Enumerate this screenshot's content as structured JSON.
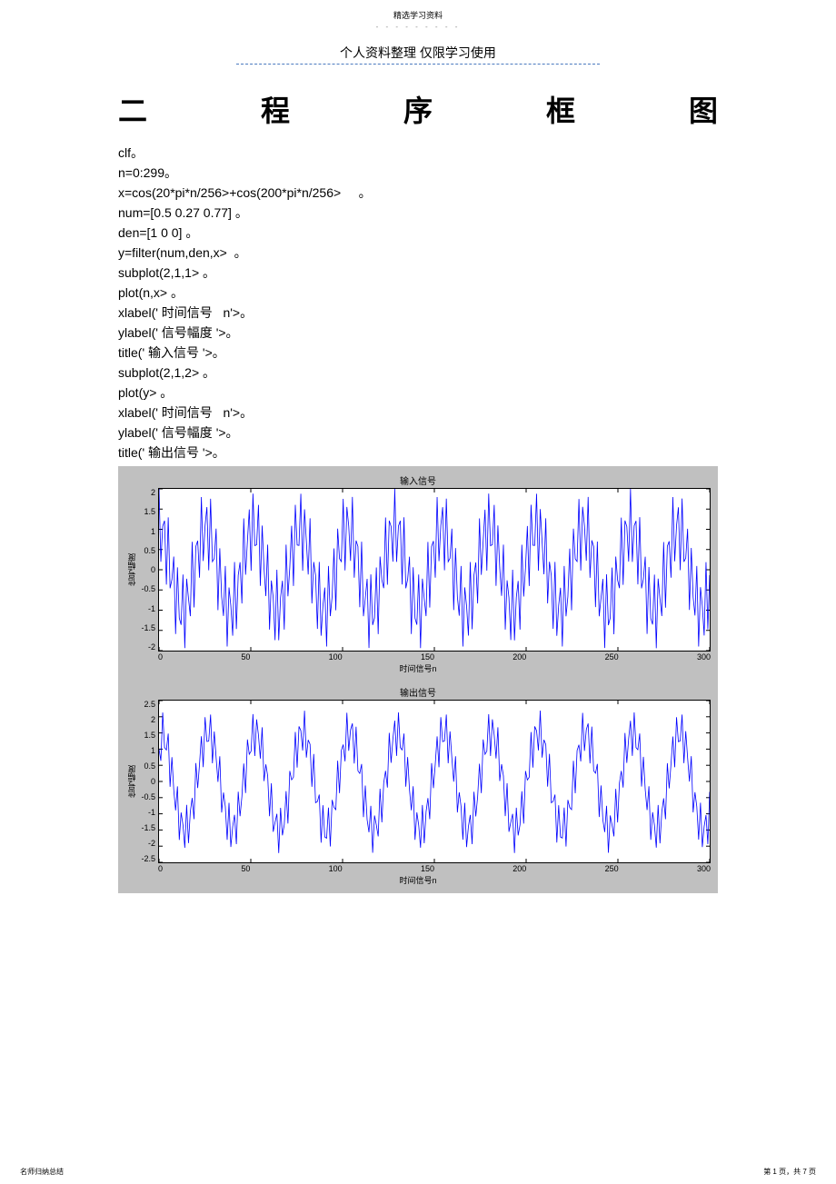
{
  "header": {
    "top": "精选学习资料",
    "dots": "- - - - - - - - -",
    "sub": "个人资料整理    仅限学习使用"
  },
  "title_chars": [
    "二",
    "程",
    "序",
    "框",
    "图"
  ],
  "code_lines": [
    "clf。",
    "n=0:299。",
    "x=cos(20*pi*n/256>+cos(200*pi*n/256>     。",
    "num=[0.5 0.27 0.77] 。",
    "den=[1 0 0] 。",
    "y=filter(num,den,x>  。",
    "subplot(2,1,1> 。",
    "plot(n,x> 。",
    "xlabel(' 时间信号   n'>。",
    "ylabel(' 信号幅度 '>。",
    "title(' 输入信号 '>。",
    "subplot(2,1,2> 。",
    "plot(y> 。",
    "xlabel(' 时间信号   n'>。",
    "ylabel(' 信号幅度 '>。",
    "title(' 输出信号 '>。"
  ],
  "chart1": {
    "title": "输入信号",
    "xlabel": "时间信号n",
    "ylabel": "信号幅度",
    "line_color": "#0000ff",
    "bg": "#ffffff",
    "box_color": "#000000",
    "xlim": [
      0,
      300
    ],
    "ylim": [
      -2,
      2
    ],
    "xticks": [
      "0",
      "50",
      "100",
      "150",
      "200",
      "250",
      "300"
    ],
    "yticks": [
      "2",
      "1.5",
      "1",
      "0.5",
      "0",
      "-0.5",
      "-1",
      "-1.5",
      "-2"
    ],
    "n_points": 300,
    "f1": 0.03906,
    "f2": 0.39063,
    "amp1": 1.0,
    "amp2": 1.0,
    "line_width": 0.8
  },
  "chart2": {
    "title": "输出信号",
    "xlabel": "时间信号n",
    "ylabel": "信号幅度",
    "line_color": "#0000ff",
    "bg": "#ffffff",
    "box_color": "#000000",
    "xlim": [
      0,
      300
    ],
    "ylim": [
      -2.5,
      2.5
    ],
    "xticks": [
      "0",
      "50",
      "100",
      "150",
      "200",
      "250",
      "300"
    ],
    "yticks": [
      "2.5",
      "2",
      "1.5",
      "1",
      "0.5",
      "0",
      "-0.5",
      "-1",
      "-1.5",
      "-2",
      "-2.5"
    ],
    "n_points": 300,
    "num": [
      0.5,
      0.27,
      0.77
    ],
    "f1": 0.03906,
    "f2": 0.39063,
    "line_width": 0.8
  },
  "footer": {
    "left": "名师归纳总结",
    "right": "第 1 页，共 7 页"
  },
  "colors": {
    "panel_bg": "#c0c0c0"
  }
}
